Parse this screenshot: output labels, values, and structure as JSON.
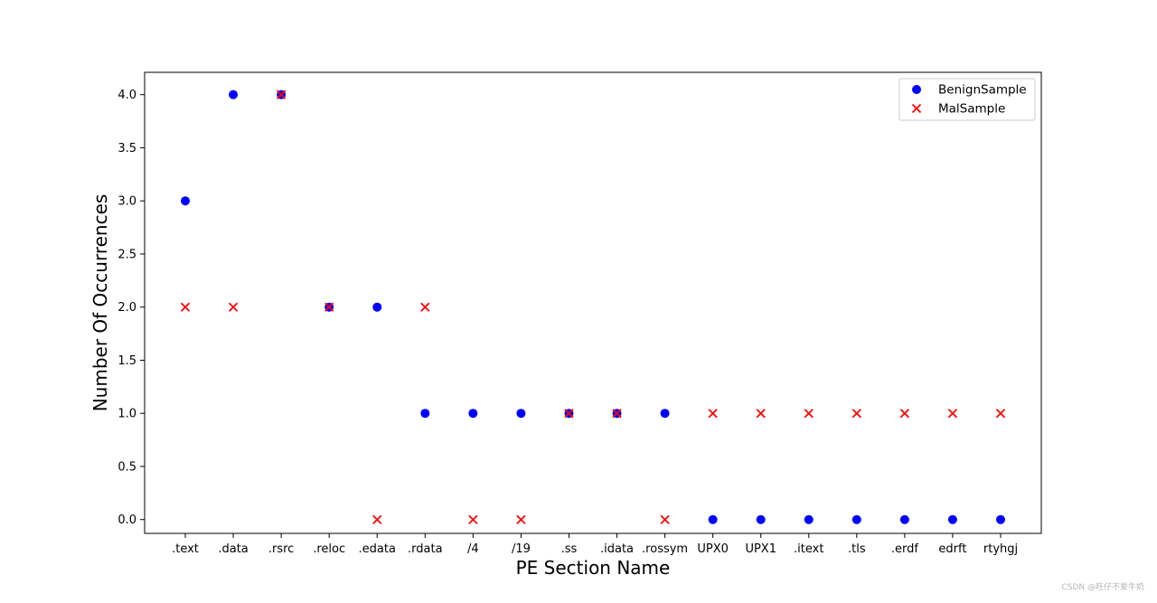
{
  "chart_data": {
    "type": "scatter",
    "title": "",
    "xlabel": "PE Section Name",
    "ylabel": "Number Of Occurrences",
    "categories": [
      ".text",
      ".data",
      ".rsrc",
      ".reloc",
      ".edata",
      ".rdata",
      "/4",
      "/19",
      ".ss",
      ".idata",
      ".rossym",
      "UPX0",
      "UPX1",
      ".itext",
      ".tls",
      ".erdf",
      "edrft",
      "rtyhgj"
    ],
    "ylim": [
      -0.13,
      4.21
    ],
    "yticks": [
      "0.0",
      "0.5",
      "1.0",
      "1.5",
      "2.0",
      "2.5",
      "3.0",
      "3.5",
      "4.0"
    ],
    "ytick_values": [
      0,
      0.5,
      1,
      1.5,
      2,
      2.5,
      3,
      3.5,
      4
    ],
    "grid": false,
    "legend_position": "top-right",
    "series": [
      {
        "name": "BenignSample",
        "marker": "circle",
        "color": "#0000ff",
        "values": [
          3,
          4,
          4,
          2,
          2,
          1,
          1,
          1,
          1,
          1,
          1,
          0,
          0,
          0,
          0,
          0,
          0,
          0
        ]
      },
      {
        "name": "MalSample",
        "marker": "x",
        "color": "#ff0000",
        "values": [
          2,
          2,
          4,
          2,
          0,
          2,
          0,
          0,
          1,
          1,
          0,
          1,
          1,
          1,
          1,
          1,
          1,
          1
        ]
      }
    ]
  },
  "watermark": "CSDN @旺仔不爱牛奶"
}
